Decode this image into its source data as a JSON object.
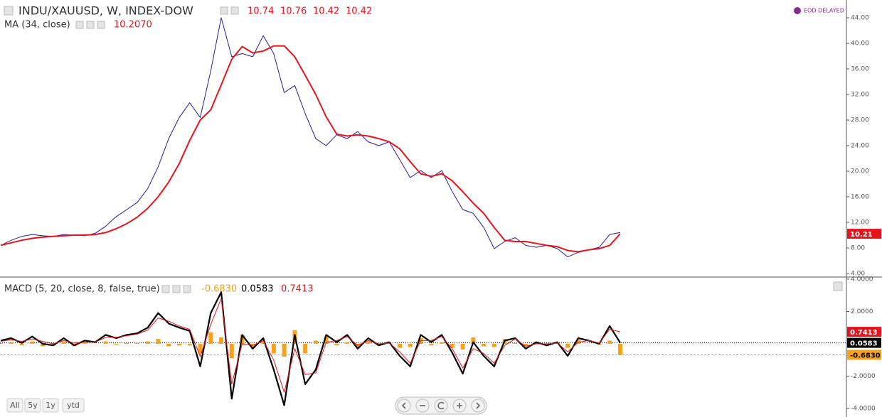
{
  "chart_data": [
    {
      "type": "line",
      "title": "INDU/XAUUSD, W, INDEX-DOW",
      "ohlc": [
        10.74,
        10.76,
        10.42,
        10.42
      ],
      "ohlc_color": "#e8141c",
      "badge": "EOD DELAYED",
      "indicator_value": {
        "value": 10.207,
        "label": "10.2070"
      },
      "series": [
        {
          "color": "#2b1a8f",
          "width": 1,
          "values": [
            8.4,
            9.2,
            9.8,
            10.1,
            9.9,
            9.8,
            10.1,
            10.0,
            9.9,
            10.3,
            11.4,
            12.9,
            14.0,
            15.1,
            17.3,
            20.7,
            25.1,
            28.4,
            30.7,
            28.4,
            35.7,
            44.0,
            37.9,
            38.4,
            37.9,
            41.2,
            38.4,
            32.3,
            33.4,
            29.0,
            25.1,
            24.0,
            25.7,
            25.1,
            26.2,
            24.6,
            24.0,
            24.6,
            21.8,
            19.0,
            20.1,
            19.0,
            20.1,
            16.8,
            14.0,
            13.4,
            11.2,
            7.9,
            9.0,
            9.6,
            8.4,
            8.1,
            8.4,
            7.9,
            6.6,
            7.3,
            7.7,
            8.1,
            10.1,
            10.42
          ]
        },
        {
          "name": "MA (34, close)",
          "color": "#e8141c",
          "width": 2,
          "last": 10.21,
          "values": [
            8.4,
            8.8,
            9.2,
            9.5,
            9.7,
            9.8,
            9.9,
            10.0,
            10.0,
            10.1,
            10.4,
            11.0,
            11.8,
            12.8,
            14.2,
            16.0,
            18.3,
            21.2,
            24.8,
            28.0,
            29.6,
            33.5,
            37.5,
            39.5,
            38.5,
            38.8,
            39.6,
            39.6,
            37.9,
            35.0,
            32.0,
            28.5,
            25.8,
            25.5,
            25.7,
            25.5,
            25.1,
            24.6,
            23.5,
            21.5,
            19.6,
            19.2,
            19.6,
            18.5,
            16.8,
            15.0,
            13.4,
            11.2,
            9.2,
            9.0,
            9.0,
            8.7,
            8.4,
            8.2,
            7.6,
            7.4,
            7.7,
            7.9,
            8.4,
            10.21
          ]
        }
      ],
      "ylim": [
        3.44,
        46.78
      ],
      "yticks": [
        {
          "value": 4,
          "label": "4.00"
        },
        {
          "value": 8,
          "label": "8.00"
        },
        {
          "value": 12,
          "label": "12.00"
        },
        {
          "value": 16,
          "label": "16.00"
        },
        {
          "value": 20,
          "label": "20.00"
        },
        {
          "value": 24,
          "label": "24.00"
        },
        {
          "value": 28,
          "label": "28.00"
        },
        {
          "value": 32,
          "label": "32.00"
        },
        {
          "value": 36,
          "label": "36.00"
        },
        {
          "value": 40,
          "label": "40.00"
        },
        {
          "value": 44,
          "label": "44.00"
        }
      ]
    },
    {
      "type": "macd",
      "title": "MACD (5, 20, close, 8, false, true)",
      "series": [
        {
          "style": "bars",
          "color": "#f7a21b",
          "guide": "dashed",
          "last": {
            "value": -0.683,
            "label": "-0.6830"
          },
          "values": [
            0.05,
            0.1,
            -0.1,
            0.15,
            -0.15,
            -0.1,
            0.15,
            -0.15,
            0.1,
            0,
            0.15,
            -0.05,
            0.05,
            0.05,
            0.15,
            0.3,
            -0.15,
            -0.1,
            -0.1,
            -0.6,
            0.7,
            0.4,
            -0.9,
            0.55,
            -0.2,
            0.15,
            -0.6,
            -0.8,
            0.85,
            -0.6,
            0.2,
            0.45,
            -0.1,
            0.1,
            -0.2,
            0.15,
            -0.1,
            0.05,
            -0.25,
            -0.2,
            0.35,
            -0.1,
            0.1,
            -0.25,
            -0.35,
            0.4,
            -0.15,
            -0.2,
            0.3,
            0.05,
            -0.15,
            0.1,
            -0.1,
            0.05,
            -0.25,
            0.25,
            0,
            -0.05,
            0.2,
            -0.683
          ]
        },
        {
          "style": "line",
          "color": "#000000",
          "width": 2.2,
          "guide": "dotted",
          "last": 0.0583,
          "values": [
            0.2,
            0.35,
            0.05,
            0.45,
            0,
            -0.1,
            0.35,
            -0.1,
            0.2,
            0.1,
            0.55,
            0.35,
            0.55,
            0.65,
            1.0,
            1.9,
            1.25,
            1.0,
            0.8,
            -1.4,
            1.9,
            3.2,
            -3.4,
            0.55,
            -0.3,
            0.35,
            -1.6,
            -3.8,
            0.55,
            -2.5,
            -1.6,
            0.55,
            0.1,
            0.55,
            -0.3,
            0.35,
            -0.1,
            0.1,
            -0.75,
            -1.4,
            0.55,
            0.1,
            0.55,
            -0.55,
            -1.85,
            0.1,
            -0.75,
            -1.4,
            0.2,
            0.35,
            -0.3,
            0.1,
            -0.1,
            0.1,
            -0.75,
            0.35,
            0.2,
            0,
            1.1,
            0.0583
          ]
        },
        {
          "style": "line",
          "color": "#e8141c",
          "width": 1,
          "last": 0.7413,
          "values": [
            0.15,
            0.25,
            0.15,
            0.3,
            0.15,
            0,
            0.2,
            0.05,
            0.1,
            0.1,
            0.4,
            0.4,
            0.5,
            0.6,
            0.85,
            1.6,
            1.4,
            1.1,
            0.9,
            -0.8,
            1.2,
            2.8,
            -2.5,
            0,
            -0.1,
            0.2,
            -1.0,
            -3.0,
            -0.3,
            -1.9,
            -1.8,
            0.1,
            0.2,
            0.45,
            -0.1,
            0.2,
            0,
            0.05,
            -0.5,
            -1.2,
            0.2,
            0.2,
            0.45,
            -0.3,
            -1.5,
            -0.3,
            -0.6,
            -1.2,
            -0.1,
            0.3,
            -0.15,
            0,
            0,
            0.05,
            -0.5,
            0.1,
            0.2,
            0.05,
            0.9,
            0.7413
          ]
        }
      ],
      "ylim": [
        -4.53,
        4.13
      ],
      "yticks": [
        {
          "value": -4,
          "label": "-4.0000"
        },
        {
          "value": -2,
          "label": "-2.0000"
        },
        {
          "value": 2,
          "label": "2.0000"
        },
        {
          "value": 4,
          "label": "4.0000"
        }
      ]
    }
  ],
  "range_buttons": [
    "All",
    "5y",
    "1y",
    "ytd"
  ]
}
